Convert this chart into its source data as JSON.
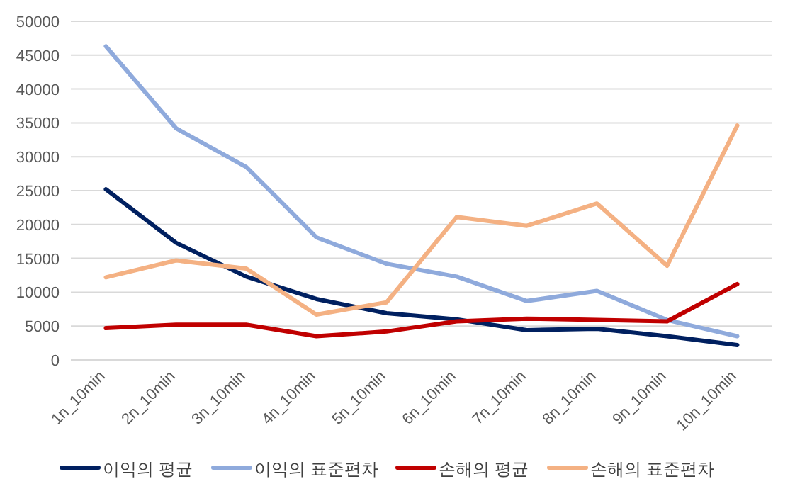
{
  "chart_data": {
    "type": "line",
    "categories": [
      "1n_10min",
      "2n_10min",
      "3n_10min",
      "4n_10min",
      "5n_10min",
      "6n_10min",
      "7n_10min",
      "8n_10min",
      "9n_10min",
      "10n_10min"
    ],
    "series": [
      {
        "name": "이익의 평균",
        "color": "#002060",
        "values": [
          25200,
          17300,
          12300,
          9000,
          6900,
          6000,
          4400,
          4600,
          3500,
          2200
        ]
      },
      {
        "name": "이익의 표준편차",
        "color": "#8faadc",
        "values": [
          46300,
          34200,
          28500,
          18100,
          14200,
          12300,
          8700,
          10200,
          5900,
          3500
        ]
      },
      {
        "name": "손해의 평균",
        "color": "#c00000",
        "values": [
          4700,
          5200,
          5200,
          3500,
          4200,
          5700,
          6100,
          5900,
          5700,
          11200
        ]
      },
      {
        "name": "손해의 표준편차",
        "color": "#f4b183",
        "values": [
          12200,
          14700,
          13500,
          6700,
          8500,
          21100,
          19800,
          23100,
          13900,
          34600
        ]
      }
    ],
    "ylim": [
      0,
      50000
    ],
    "yticks": [
      0,
      5000,
      10000,
      15000,
      20000,
      25000,
      30000,
      35000,
      40000,
      45000,
      50000
    ],
    "grid": "y",
    "legend": "bottom",
    "marker": "none",
    "line_style": "solid"
  }
}
